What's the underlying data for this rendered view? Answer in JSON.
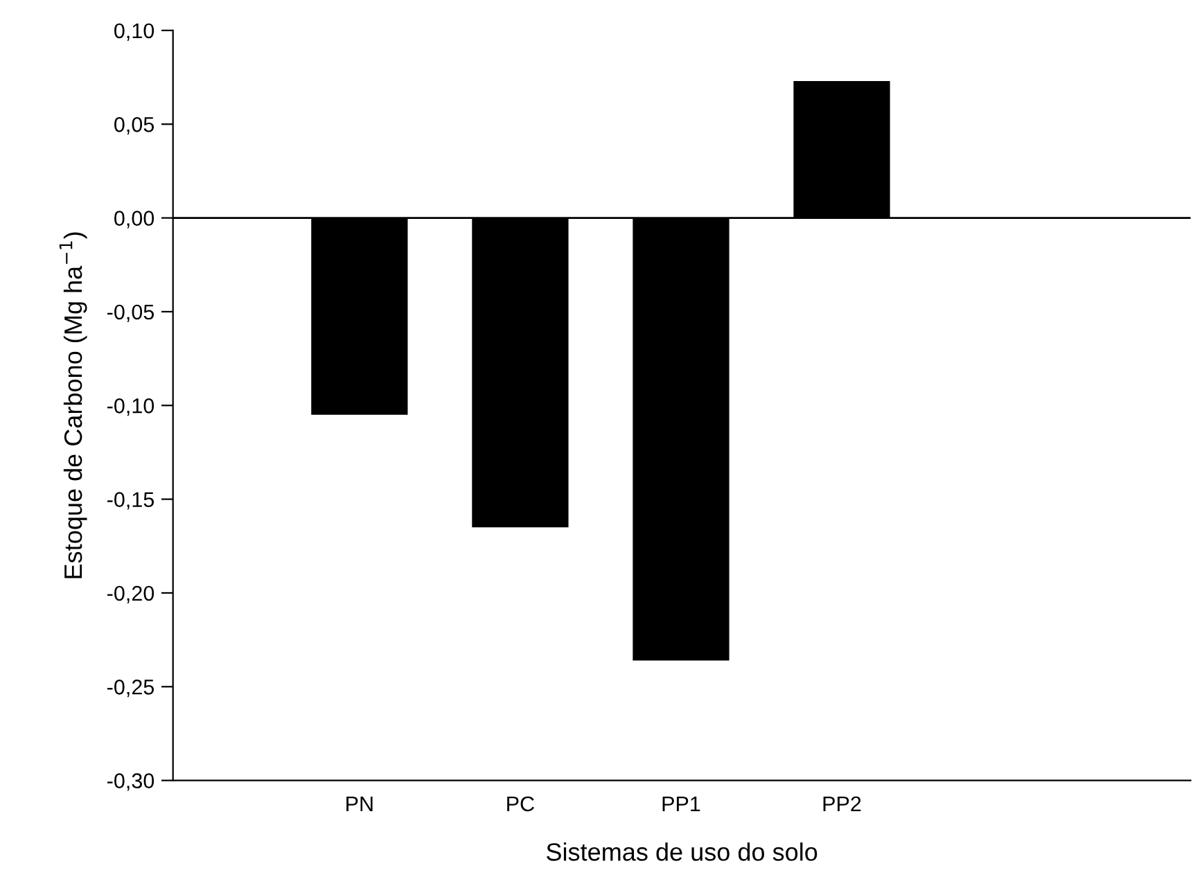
{
  "chart_data": {
    "type": "bar",
    "xlabel": "Sistemas de uso do solo",
    "ylabel": "Estoque de Carbono (Mg ha$^{−1}$)",
    "categories": [
      "PN",
      "PC",
      "PP1",
      "PP2"
    ],
    "values": [
      -0.105,
      -0.165,
      -0.236,
      0.073
    ],
    "color": "#000000",
    "ylim": [
      -0.3,
      0.1
    ],
    "yticks": [
      {
        "value": -0.3,
        "label": "-0,30"
      },
      {
        "value": -0.25,
        "label": "-0,25"
      },
      {
        "value": -0.2,
        "label": "-0,20"
      },
      {
        "value": -0.15,
        "label": "-0,15"
      },
      {
        "value": -0.1,
        "label": "-0,10"
      },
      {
        "value": -0.05,
        "label": "-0,05"
      },
      {
        "value": 0.0,
        "label": "0,00"
      },
      {
        "value": 0.05,
        "label": "0,05"
      },
      {
        "value": 0.1,
        "label": "0,10"
      }
    ],
    "ref_lines": [
      {
        "axis": "y",
        "value": 0.0,
        "color": "#000000"
      }
    ],
    "grid": false,
    "legend": false
  }
}
